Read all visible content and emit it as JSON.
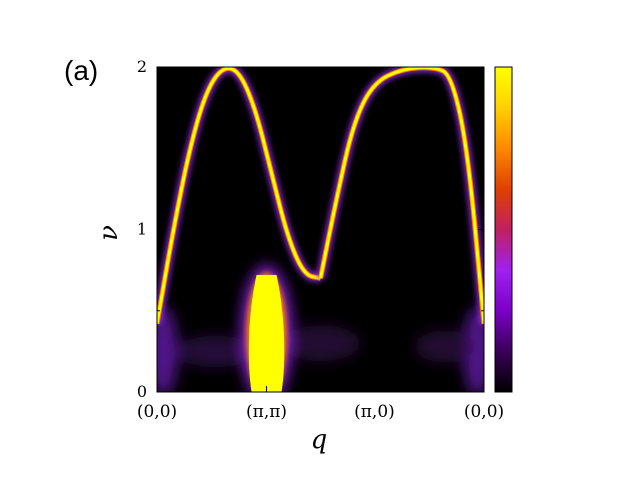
{
  "panel_label": "(a)",
  "chart_data": {
    "type": "heatmap",
    "title": "",
    "xlabel": "q",
    "ylabel": "ν",
    "x_tick_labels": [
      "(0,0)",
      "(π,π)",
      "(π,0)",
      "(0,0)"
    ],
    "y_ticks": [
      0,
      1,
      2
    ],
    "y_tick_labels": [
      "0",
      "1",
      "2"
    ],
    "ylim": [
      0,
      2
    ],
    "colorbar": {
      "colors": [
        "#000000",
        "#3a0058",
        "#7b00c8",
        "#a020f0",
        "#c02060",
        "#e04000",
        "#ff8800",
        "#ffd000",
        "#ffff00"
      ],
      "tick_labels": []
    },
    "features": {
      "dispersion_branch_1": {
        "description_x_range": "(0,0) to (π,π)",
        "x_frac": [
          0.0,
          0.05,
          0.1,
          0.15,
          0.2,
          0.25,
          0.3,
          0.35,
          0.4,
          0.45,
          0.5
        ],
        "nu": [
          0.42,
          1.0,
          1.5,
          1.85,
          2.0,
          1.98,
          1.75,
          1.35,
          0.95,
          0.72,
          0.7
        ]
      },
      "dispersion_branch_2": {
        "description_x_range": "(π,π) to (0,0)",
        "x_frac": [
          0.5,
          0.55,
          0.6,
          0.66,
          0.75,
          0.85,
          0.9,
          0.95,
          1.0
        ],
        "nu": [
          0.7,
          1.2,
          1.65,
          1.9,
          1.99,
          2.0,
          1.95,
          1.5,
          0.42
        ]
      },
      "high_intensity_region": {
        "x_frac_center": 0.335,
        "nu_range": [
          0,
          0.72
        ]
      }
    }
  }
}
